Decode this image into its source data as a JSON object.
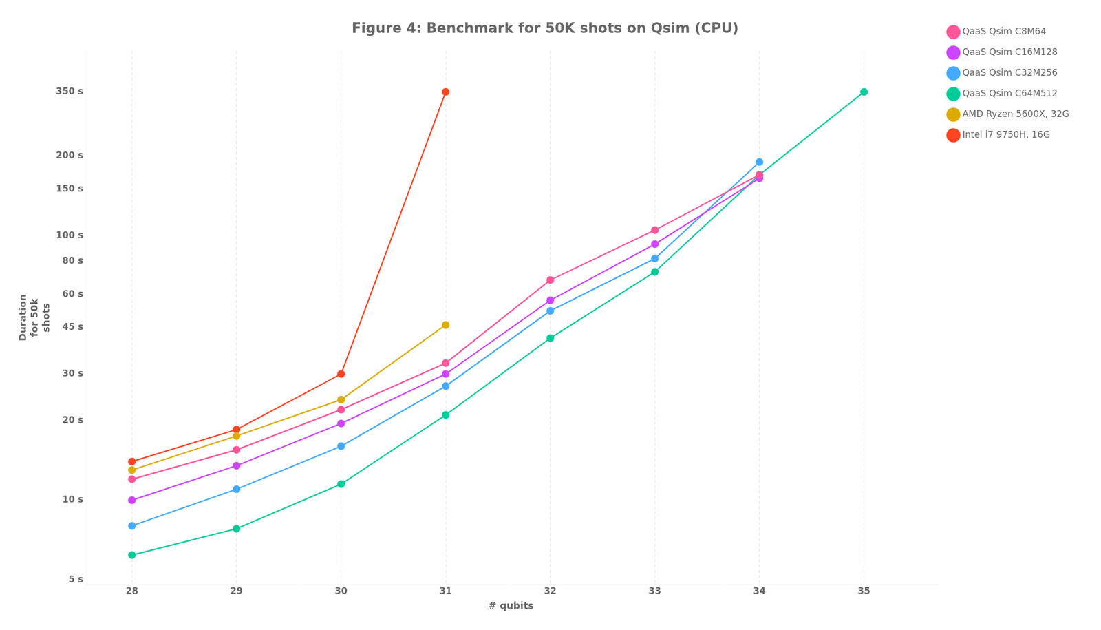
{
  "chart_data": {
    "type": "line",
    "title": "Figure 4: Benchmark for 50K shots on Qsim (CPU)",
    "xlabel": "# qubits",
    "ylabel": "Duration\nfor 50k\nshots",
    "x": [
      28,
      29,
      30,
      31,
      32,
      33,
      34,
      35
    ],
    "series": [
      {
        "name": "QaaS Qsim C8M64",
        "color": "#ff5599",
        "values": [
          12.0,
          15.5,
          22.0,
          33.0,
          68.0,
          105.0,
          170.0,
          null
        ]
      },
      {
        "name": "QaaS Qsim C16M128",
        "color": "#cc44ff",
        "values": [
          10.0,
          13.5,
          19.5,
          30.0,
          57.0,
          93.0,
          165.0,
          null
        ]
      },
      {
        "name": "QaaS Qsim C32M256",
        "color": "#44aaff",
        "values": [
          8.0,
          11.0,
          16.0,
          27.0,
          52.0,
          82.0,
          190.0,
          null
        ]
      },
      {
        "name": "QaaS Qsim C64M512",
        "color": "#00cc99",
        "values": [
          6.2,
          7.8,
          11.5,
          21.0,
          41.0,
          73.0,
          170.0,
          350.0
        ]
      },
      {
        "name": "AMD Ryzen 5600X, 32G",
        "color": "#ddaa00",
        "values": [
          13.0,
          17.5,
          24.0,
          46.0,
          null,
          null,
          null,
          null
        ]
      },
      {
        "name": "Intel i7 9750H, 16G",
        "color": "#ff4422",
        "values": [
          14.0,
          18.5,
          30.0,
          350.0,
          null,
          null,
          null,
          null
        ]
      }
    ],
    "xlim": [
      27.55,
      35.7
    ],
    "xticks": [
      28,
      29,
      30,
      31,
      32,
      33,
      34,
      35
    ],
    "ylim": [
      4.8,
      500
    ],
    "yticks": [
      {
        "value": 5,
        "label": "5 s"
      },
      {
        "value": 10,
        "label": "10 s"
      },
      {
        "value": 20,
        "label": "20 s"
      },
      {
        "value": 30,
        "label": "30 s"
      },
      {
        "value": 45,
        "label": "45 s"
      },
      {
        "value": 60,
        "label": "60 s"
      },
      {
        "value": 80,
        "label": "80 s"
      },
      {
        "value": 100,
        "label": "100 s"
      },
      {
        "value": 150,
        "label": "150 s"
      },
      {
        "value": 200,
        "label": "200 s"
      },
      {
        "value": 350,
        "label": "350 s"
      }
    ],
    "log": "y",
    "grid": "x",
    "legend": "right",
    "marker": "circle"
  }
}
